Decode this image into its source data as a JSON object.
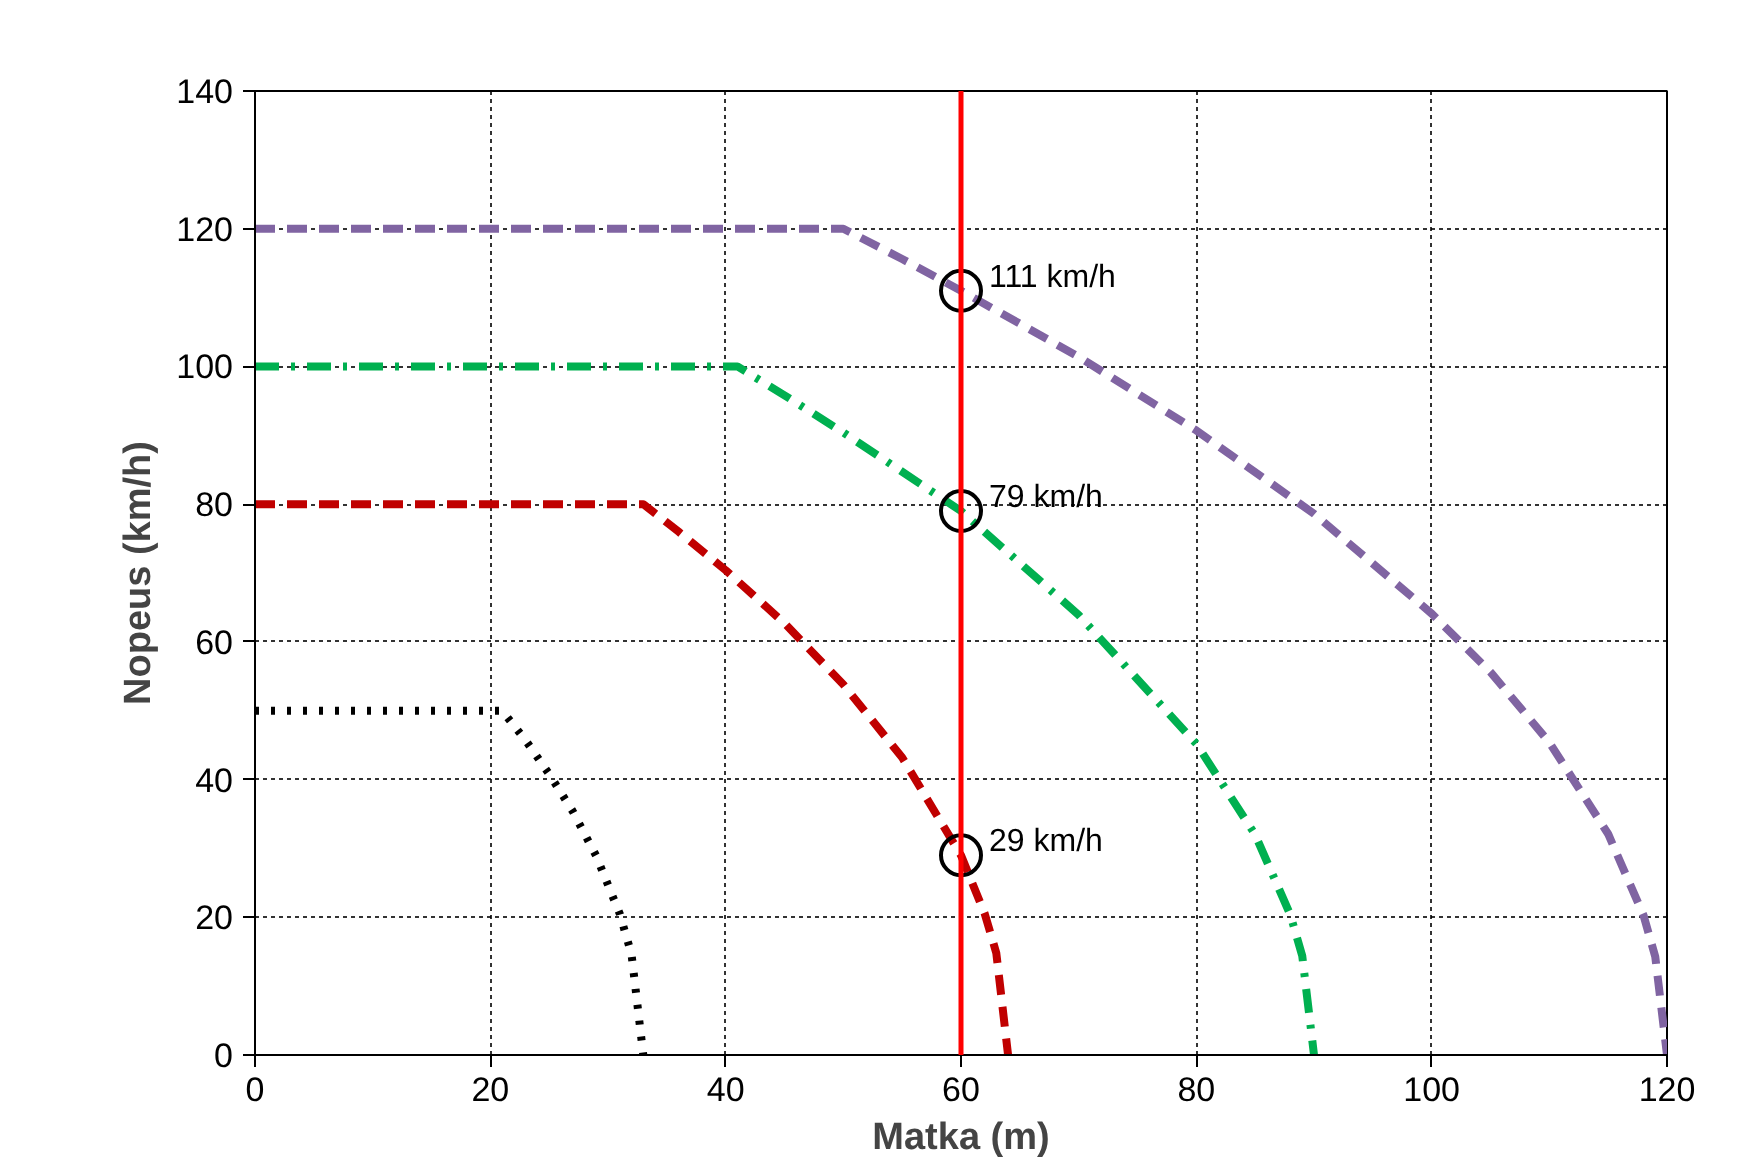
{
  "chart_data": {
    "type": "line",
    "xlabel": "Matka (m)",
    "ylabel": "Nopeus (km/h)",
    "xlim": [
      0,
      120
    ],
    "ylim": [
      0,
      140
    ],
    "xticks": [
      0,
      20,
      40,
      60,
      80,
      100,
      120
    ],
    "yticks": [
      0,
      20,
      40,
      60,
      80,
      100,
      120,
      140
    ],
    "grid": true,
    "series": [
      {
        "color": "#8064a2",
        "line_style": "dashed",
        "x": [
          0,
          50,
          55,
          60,
          70,
          80,
          90,
          100,
          105,
          110,
          115,
          118,
          119,
          120
        ],
        "values": [
          120,
          120,
          115.6,
          111,
          101.4,
          90.7,
          78.6,
          64.1,
          55.6,
          45.4,
          32.1,
          20.3,
          14.3,
          0
        ]
      },
      {
        "color": "#00b050",
        "line_style": "dashdot",
        "x": [
          0,
          41,
          45,
          50,
          60,
          70,
          80,
          85,
          88,
          89,
          90
        ],
        "values": [
          100,
          100,
          95.8,
          90.4,
          79,
          63.9,
          45.2,
          32,
          20.3,
          14.4,
          0
        ]
      },
      {
        "color": "#c00000",
        "line_style": "dashed",
        "x": [
          0,
          33,
          36,
          40,
          45,
          50,
          55,
          60,
          62,
          63,
          64
        ],
        "values": [
          80,
          80,
          76,
          70.4,
          62.7,
          53.8,
          43.2,
          29,
          20.6,
          14.8,
          0
        ]
      },
      {
        "color": "#000000",
        "line_style": "dotted",
        "x": [
          0,
          21,
          23,
          25,
          27,
          29,
          31,
          32,
          33
        ],
        "values": [
          50,
          50,
          45.7,
          40.8,
          35.4,
          28.9,
          20.5,
          14.6,
          0
        ]
      },
      {
        "type": "scatter",
        "marker": "circle",
        "color": "#000000",
        "x": [
          60,
          60,
          60
        ],
        "values": [
          111,
          79,
          29
        ],
        "value_labels": [
          "111 km/h",
          "79 km/h",
          "29 km/h"
        ]
      }
    ],
    "ref_lines": [
      {
        "axis": "x",
        "value": 60,
        "color": "#ff0000",
        "line_style": "solid"
      }
    ]
  }
}
